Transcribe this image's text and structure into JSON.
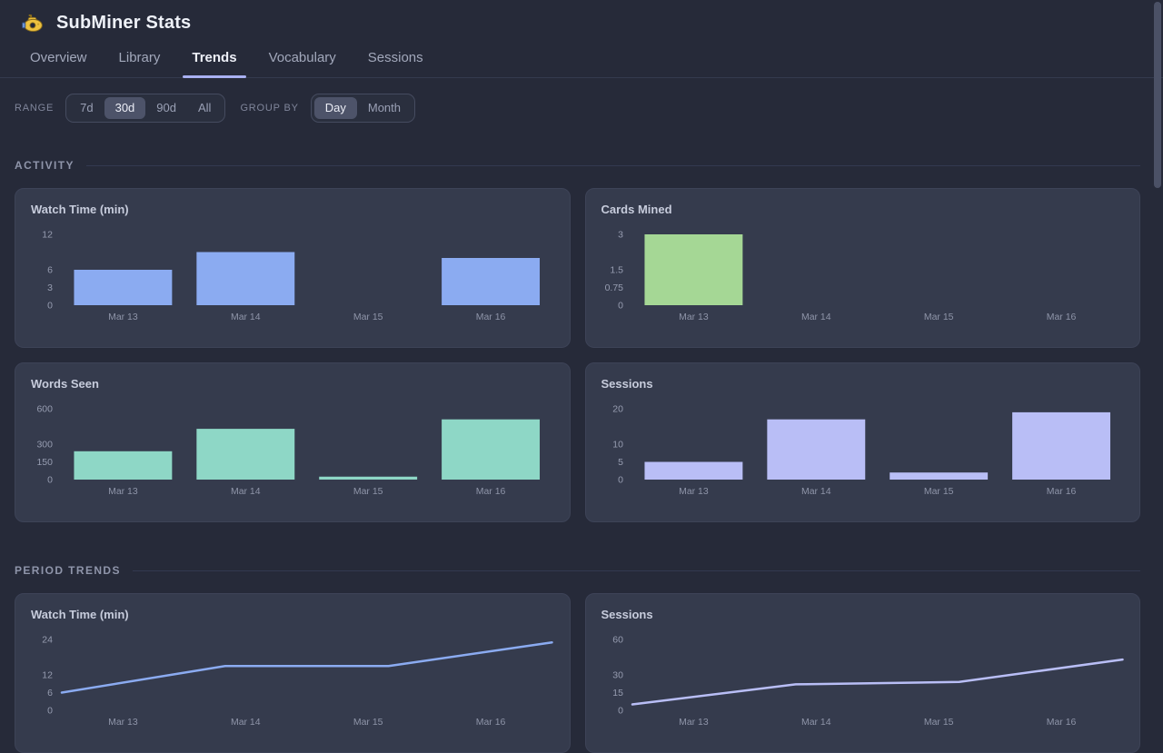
{
  "app": {
    "title": "SubMiner Stats",
    "logo": "submarine-icon"
  },
  "tabs": [
    {
      "label": "Overview",
      "active": false
    },
    {
      "label": "Library",
      "active": false
    },
    {
      "label": "Trends",
      "active": true
    },
    {
      "label": "Vocabulary",
      "active": false
    },
    {
      "label": "Sessions",
      "active": false
    }
  ],
  "filters": {
    "range": {
      "label": "RANGE",
      "options": [
        "7d",
        "30d",
        "90d",
        "All"
      ],
      "selected": "30d"
    },
    "group_by": {
      "label": "GROUP BY",
      "options": [
        "Day",
        "Month"
      ],
      "selected": "Day"
    }
  },
  "sections": [
    {
      "id": "activity",
      "label": "ACTIVITY"
    },
    {
      "id": "period-trends",
      "label": "PERIOD TRENDS"
    }
  ],
  "colors": {
    "accent_underline": "#a9b0f2",
    "blue": "#8babf1",
    "green": "#a5d795",
    "teal": "#8ed7c6",
    "lavender": "#b9bef6"
  },
  "chart_data": [
    {
      "section": "activity",
      "type": "bar",
      "title": "Watch Time (min)",
      "categories": [
        "Mar 13",
        "Mar 14",
        "Mar 15",
        "Mar 16"
      ],
      "values": [
        6,
        9,
        0,
        8
      ],
      "yticks": [
        12,
        6,
        3,
        0
      ],
      "ylim": [
        0,
        12
      ],
      "color": "#8babf1",
      "grid": false,
      "legend": "none"
    },
    {
      "section": "activity",
      "type": "bar",
      "title": "Cards Mined",
      "categories": [
        "Mar 13",
        "Mar 14",
        "Mar 15",
        "Mar 16"
      ],
      "values": [
        3,
        0,
        0,
        0
      ],
      "yticks": [
        3,
        1.5,
        0.75,
        0
      ],
      "ylim": [
        0,
        3
      ],
      "color": "#a5d795",
      "grid": false,
      "legend": "none"
    },
    {
      "section": "activity",
      "type": "bar",
      "title": "Words Seen",
      "categories": [
        "Mar 13",
        "Mar 14",
        "Mar 15",
        "Mar 16"
      ],
      "values": [
        240,
        430,
        25,
        510
      ],
      "yticks": [
        600,
        300,
        150,
        0
      ],
      "ylim": [
        0,
        600
      ],
      "color": "#8ed7c6",
      "grid": false,
      "legend": "none"
    },
    {
      "section": "activity",
      "type": "bar",
      "title": "Sessions",
      "categories": [
        "Mar 13",
        "Mar 14",
        "Mar 15",
        "Mar 16"
      ],
      "values": [
        5,
        17,
        2,
        19
      ],
      "yticks": [
        20,
        10,
        5,
        0
      ],
      "ylim": [
        0,
        20
      ],
      "color": "#b9bef6",
      "grid": false,
      "legend": "none"
    },
    {
      "section": "period-trends",
      "type": "line",
      "title": "Watch Time (min)",
      "categories": [
        "Mar 13",
        "Mar 14",
        "Mar 15",
        "Mar 16"
      ],
      "values": [
        6,
        15,
        15,
        23
      ],
      "yticks": [
        24,
        12,
        6,
        0
      ],
      "ylim": [
        0,
        24
      ],
      "color": "#8babf1",
      "grid": false,
      "legend": "none"
    },
    {
      "section": "period-trends",
      "type": "line",
      "title": "Sessions",
      "categories": [
        "Mar 13",
        "Mar 14",
        "Mar 15",
        "Mar 16"
      ],
      "values": [
        5,
        22,
        24,
        43
      ],
      "yticks": [
        60,
        30,
        15,
        0
      ],
      "ylim": [
        0,
        60
      ],
      "color": "#b9bef6",
      "grid": false,
      "legend": "none"
    }
  ]
}
